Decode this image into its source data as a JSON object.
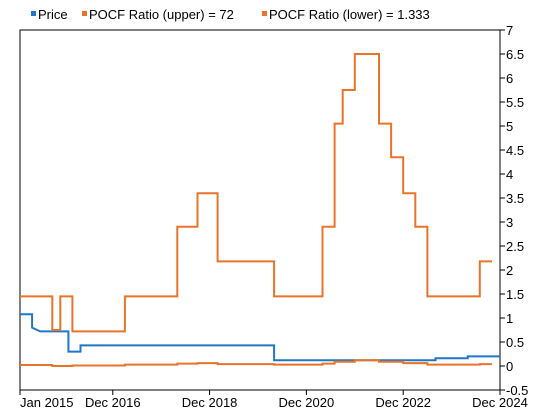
{
  "chart_data": {
    "type": "line",
    "legend": {
      "placement": "top-left",
      "entries": [
        {
          "label": "Price",
          "color": "#1f77c9"
        },
        {
          "label": "POCF Ratio (upper) = 72",
          "color": "#e8742a"
        },
        {
          "label": "POCF Ratio (lower) = 1.333",
          "color": "#e8742a"
        }
      ]
    },
    "x_ticks": [
      "Jan 2015",
      "Dec 2016",
      "Dec 2018",
      "Dec 2020",
      "Dec 2022",
      "Dec 2024"
    ],
    "y_ticks": [
      "7",
      "6.5",
      "6",
      "5.5",
      "5",
      "4.5",
      "4",
      "3.5",
      "3",
      "2.5",
      "2",
      "1.5",
      "1",
      "0.5",
      "0",
      "-0.5"
    ],
    "xlim": [
      "2015-01",
      "2024-12"
    ],
    "ylim": [
      -0.5,
      7
    ],
    "grid": false,
    "series": [
      {
        "name": "Price",
        "color": "#1f77c9",
        "points": [
          [
            "2015-01",
            1.08
          ],
          [
            "2015-04",
            1.08
          ],
          [
            "2015-04",
            0.8
          ],
          [
            "2015-06",
            0.72
          ],
          [
            "2016-01",
            0.72
          ],
          [
            "2016-01",
            0.3
          ],
          [
            "2016-04",
            0.3
          ],
          [
            "2016-04",
            0.43
          ],
          [
            "2020-04",
            0.43
          ],
          [
            "2020-04",
            0.12
          ],
          [
            "2023-08",
            0.12
          ],
          [
            "2023-08",
            0.16
          ],
          [
            "2024-04",
            0.16
          ],
          [
            "2024-04",
            0.2
          ],
          [
            "2024-12",
            0.2
          ]
        ]
      },
      {
        "name": "POCF Ratio (upper) = 72",
        "color": "#e8742a",
        "points": [
          [
            "2015-01",
            1.45
          ],
          [
            "2015-09",
            1.45
          ],
          [
            "2015-09",
            0.75
          ],
          [
            "2015-11",
            0.75
          ],
          [
            "2015-11",
            1.45
          ],
          [
            "2016-02",
            1.45
          ],
          [
            "2016-02",
            0.72
          ],
          [
            "2017-03",
            0.72
          ],
          [
            "2017-03",
            1.45
          ],
          [
            "2018-04",
            1.45
          ],
          [
            "2018-04",
            2.9
          ],
          [
            "2018-09",
            2.9
          ],
          [
            "2018-09",
            3.6
          ],
          [
            "2019-02",
            3.6
          ],
          [
            "2019-02",
            2.18
          ],
          [
            "2020-04",
            2.18
          ],
          [
            "2020-04",
            1.45
          ],
          [
            "2021-04",
            1.45
          ],
          [
            "2021-04",
            2.9
          ],
          [
            "2021-07",
            2.9
          ],
          [
            "2021-07",
            5.05
          ],
          [
            "2021-09",
            5.05
          ],
          [
            "2021-09",
            5.75
          ],
          [
            "2021-12",
            5.75
          ],
          [
            "2021-12",
            6.5
          ],
          [
            "2022-06",
            6.5
          ],
          [
            "2022-06",
            5.05
          ],
          [
            "2022-09",
            5.05
          ],
          [
            "2022-09",
            4.35
          ],
          [
            "2022-12",
            4.35
          ],
          [
            "2022-12",
            3.6
          ],
          [
            "2023-03",
            3.6
          ],
          [
            "2023-03",
            2.9
          ],
          [
            "2023-06",
            2.9
          ],
          [
            "2023-06",
            1.45
          ],
          [
            "2024-07",
            1.45
          ],
          [
            "2024-07",
            2.18
          ],
          [
            "2024-10",
            2.18
          ]
        ]
      },
      {
        "name": "POCF Ratio (lower) = 1.333",
        "color": "#e8742a",
        "points": [
          [
            "2015-01",
            0.02
          ],
          [
            "2015-09",
            0.02
          ],
          [
            "2015-09",
            0.0
          ],
          [
            "2016-02",
            0.0
          ],
          [
            "2016-02",
            0.01
          ],
          [
            "2017-03",
            0.01
          ],
          [
            "2017-03",
            0.03
          ],
          [
            "2018-04",
            0.03
          ],
          [
            "2018-04",
            0.05
          ],
          [
            "2018-09",
            0.05
          ],
          [
            "2018-09",
            0.06
          ],
          [
            "2019-02",
            0.06
          ],
          [
            "2019-02",
            0.04
          ],
          [
            "2020-04",
            0.04
          ],
          [
            "2020-04",
            0.03
          ],
          [
            "2021-04",
            0.03
          ],
          [
            "2021-04",
            0.05
          ],
          [
            "2021-07",
            0.05
          ],
          [
            "2021-07",
            0.09
          ],
          [
            "2021-12",
            0.09
          ],
          [
            "2021-12",
            0.12
          ],
          [
            "2022-06",
            0.12
          ],
          [
            "2022-06",
            0.09
          ],
          [
            "2022-12",
            0.09
          ],
          [
            "2022-12",
            0.06
          ],
          [
            "2023-06",
            0.06
          ],
          [
            "2023-06",
            0.03
          ],
          [
            "2024-07",
            0.03
          ],
          [
            "2024-07",
            0.04
          ],
          [
            "2024-10",
            0.04
          ]
        ]
      }
    ]
  }
}
